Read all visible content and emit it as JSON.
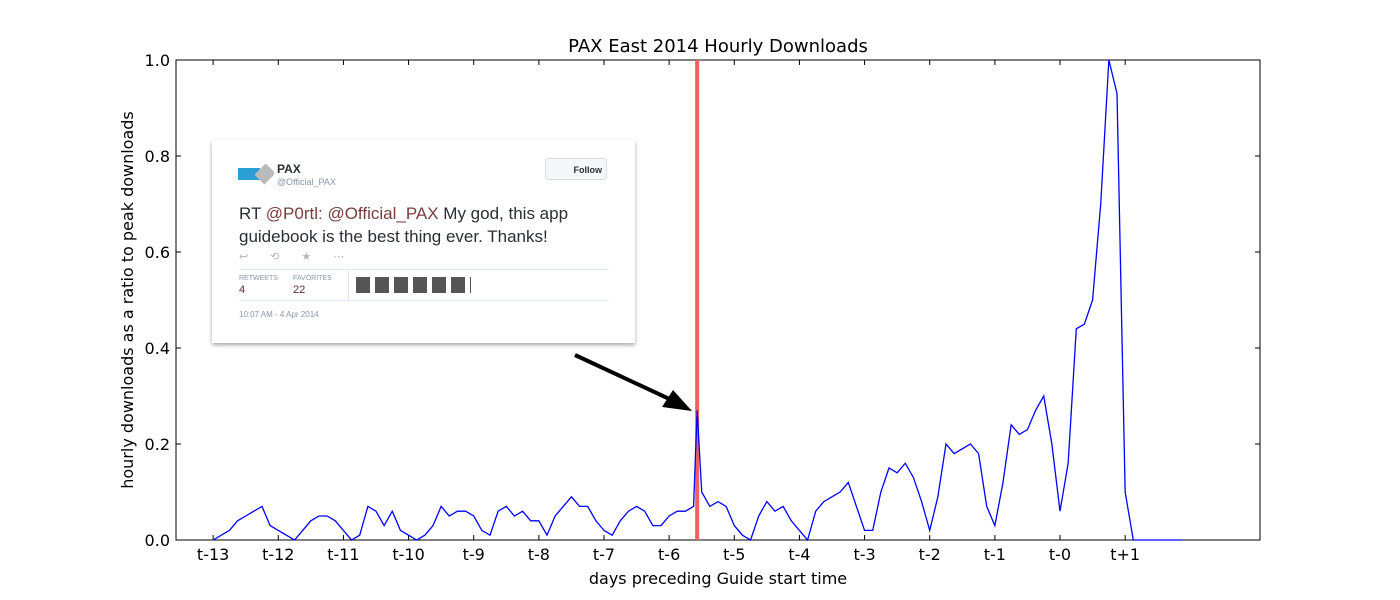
{
  "chart_data": {
    "type": "line",
    "title": "PAX East 2014 Hourly Downloads",
    "xlabel": "days preceding Guide start time",
    "ylabel": "hourly downloads as a ratio to peak downloads",
    "color": "#0000ff",
    "x": [
      -13,
      -12.875,
      -12.75,
      -12.625,
      -12.5,
      -12.375,
      -12.25,
      -12.125,
      -12,
      -11.875,
      -11.75,
      -11.625,
      -11.5,
      -11.375,
      -11.25,
      -11.125,
      -11,
      -10.875,
      -10.75,
      -10.625,
      -10.5,
      -10.375,
      -10.25,
      -10.125,
      -10,
      -9.875,
      -9.75,
      -9.625,
      -9.5,
      -9.375,
      -9.25,
      -9.125,
      -9,
      -8.875,
      -8.75,
      -8.625,
      -8.5,
      -8.375,
      -8.25,
      -8.125,
      -8,
      -7.875,
      -7.75,
      -7.625,
      -7.5,
      -7.375,
      -7.25,
      -7.125,
      -7,
      -6.875,
      -6.75,
      -6.625,
      -6.5,
      -6.375,
      -6.25,
      -6.125,
      -6,
      -5.875,
      -5.75,
      -5.625,
      -5.57,
      -5.5,
      -5.375,
      -5.25,
      -5.125,
      -5,
      -4.875,
      -4.75,
      -4.625,
      -4.5,
      -4.375,
      -4.25,
      -4.125,
      -4,
      -3.875,
      -3.75,
      -3.625,
      -3.5,
      -3.375,
      -3.25,
      -3.125,
      -3,
      -2.875,
      -2.75,
      -2.625,
      -2.5,
      -2.375,
      -2.25,
      -2.125,
      -2,
      -1.875,
      -1.75,
      -1.625,
      -1.5,
      -1.375,
      -1.25,
      -1.125,
      -1,
      -0.875,
      -0.75,
      -0.625,
      -0.5,
      -0.375,
      -0.25,
      -0.125,
      0,
      0.125,
      0.25,
      0.375,
      0.5,
      0.625,
      0.75,
      0.875,
      1,
      1.125,
      1.25,
      1.375,
      1.5,
      1.625,
      1.75,
      1.875
    ],
    "values": [
      0.0,
      0.01,
      0.02,
      0.04,
      0.05,
      0.06,
      0.07,
      0.03,
      0.02,
      0.01,
      0.0,
      0.02,
      0.04,
      0.05,
      0.05,
      0.04,
      0.02,
      0.0,
      0.01,
      0.07,
      0.06,
      0.03,
      0.06,
      0.02,
      0.01,
      0.0,
      0.01,
      0.03,
      0.07,
      0.05,
      0.06,
      0.06,
      0.05,
      0.02,
      0.01,
      0.06,
      0.07,
      0.05,
      0.06,
      0.04,
      0.04,
      0.01,
      0.05,
      0.07,
      0.09,
      0.07,
      0.07,
      0.04,
      0.02,
      0.01,
      0.04,
      0.06,
      0.07,
      0.06,
      0.03,
      0.03,
      0.05,
      0.06,
      0.06,
      0.07,
      0.27,
      0.1,
      0.07,
      0.08,
      0.07,
      0.03,
      0.01,
      0.0,
      0.05,
      0.08,
      0.06,
      0.07,
      0.04,
      0.02,
      0.0,
      0.06,
      0.08,
      0.09,
      0.1,
      0.12,
      0.07,
      0.02,
      0.02,
      0.1,
      0.15,
      0.14,
      0.16,
      0.13,
      0.08,
      0.02,
      0.09,
      0.2,
      0.18,
      0.19,
      0.2,
      0.18,
      0.07,
      0.03,
      0.12,
      0.24,
      0.22,
      0.23,
      0.27,
      0.3,
      0.2,
      0.06,
      0.16,
      0.44,
      0.45,
      0.5,
      0.7,
      1.0,
      0.93,
      0.1,
      0.0,
      0.0,
      0.0,
      0.0,
      0.0,
      0.0,
      0.0
    ],
    "xlim": [
      -13.57,
      3.07
    ],
    "ylim": [
      0,
      1
    ],
    "xticks": [
      {
        "value": -13,
        "label": "t-13"
      },
      {
        "value": -12,
        "label": "t-12"
      },
      {
        "value": -11,
        "label": "t-11"
      },
      {
        "value": -10,
        "label": "t-10"
      },
      {
        "value": -9,
        "label": "t-9"
      },
      {
        "value": -8,
        "label": "t-8"
      },
      {
        "value": -7,
        "label": "t-7"
      },
      {
        "value": -6,
        "label": "t-6"
      },
      {
        "value": -5,
        "label": "t-5"
      },
      {
        "value": -4,
        "label": "t-4"
      },
      {
        "value": -3,
        "label": "t-3"
      },
      {
        "value": -2,
        "label": "t-2"
      },
      {
        "value": -1,
        "label": "t-1"
      },
      {
        "value": 0,
        "label": "t-0"
      },
      {
        "value": 1,
        "label": "t+1"
      }
    ],
    "yticks": [
      {
        "value": 0,
        "label": "0.0"
      },
      0.2,
      0.4,
      0.6,
      0.8,
      {
        "value": 1,
        "label": "1.0"
      }
    ],
    "vline": {
      "x": -5.57,
      "color": "#f06060"
    }
  },
  "tweet": {
    "name": "PAX",
    "handle": "@Official_PAX",
    "button": "Follow",
    "text": [
      "RT ",
      "@P0rtl:",
      " ",
      "@Official_PAX",
      " My god, this app guidebook is the best thing ever. Thanks!"
    ],
    "retweets_label": "RETWEETS",
    "retweets": 4,
    "favorites_label": "FAVORITES",
    "favorites": 22,
    "timestamp": "10:07 AM - 4 Apr 2014"
  }
}
